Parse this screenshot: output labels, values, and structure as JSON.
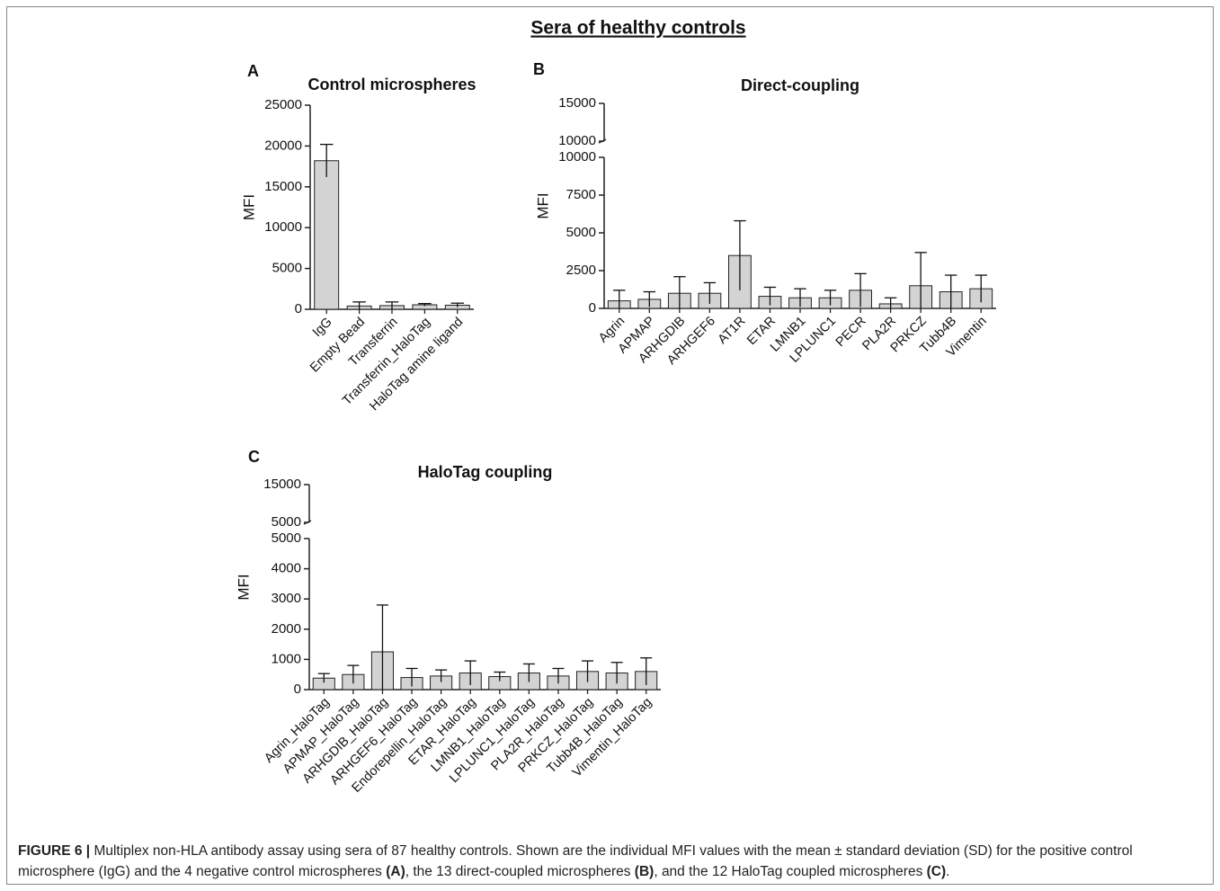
{
  "header": {
    "title": "Sera of healthy controls"
  },
  "chart_data": [
    {
      "type": "bar",
      "panel_label": "A",
      "title": "Control microspheres",
      "ylabel": "MFI",
      "color": "#d3d3d3",
      "categories": [
        "IgG",
        "Empty Bead",
        "Transferrin",
        "Transferrin_HaloTag",
        "HaloTag amine ligand"
      ],
      "values": [
        18200,
        400,
        450,
        550,
        500
      ],
      "errors": [
        2000,
        500,
        450,
        150,
        250
      ],
      "ylim": [
        0,
        25000
      ],
      "yticks": [
        0,
        5000,
        10000,
        15000,
        20000,
        25000
      ]
    },
    {
      "type": "bar",
      "panel_label": "B",
      "title": "Direct-coupling",
      "ylabel": "MFI",
      "color": "#d3d3d3",
      "categories": [
        "Agrin",
        "APMAP",
        "ARHGDIB",
        "ARHGEF6",
        "AT1R",
        "ETAR",
        "LMNB1",
        "LPLUNC1",
        "PECR",
        "PLA2R",
        "PRKCZ",
        "Tubb4B",
        "Vimentin"
      ],
      "values": [
        500,
        600,
        1000,
        1000,
        3500,
        800,
        700,
        700,
        1200,
        300,
        1500,
        1100,
        1300
      ],
      "errors": [
        700,
        500,
        1100,
        700,
        2300,
        600,
        600,
        500,
        1100,
        400,
        2200,
        1100,
        900
      ],
      "ylim": [
        0,
        10000
      ],
      "yticks": [
        0,
        2500,
        5000,
        7500,
        10000
      ],
      "ylim_upper": [
        10000,
        15000
      ],
      "yticks_upper": [
        10000,
        15000
      ]
    },
    {
      "type": "bar",
      "panel_label": "C",
      "title": "HaloTag coupling",
      "ylabel": "MFI",
      "color": "#d3d3d3",
      "categories": [
        "Agrin_HaloTag",
        "APMAP_HaloTag",
        "ARHGDIB_HaloTag",
        "ARHGEF6_HaloTag",
        "Endorepellin_HaloTag",
        "ETAR_HaloTag",
        "LMNB1_HaloTag",
        "LPLUNC1_HaloTag",
        "PLA2R_HaloTag",
        "PRKCZ_HaloTag",
        "Tubb4B_HaloTag",
        "Vimentin_HaloTag"
      ],
      "values": [
        380,
        500,
        1250,
        400,
        450,
        550,
        430,
        550,
        450,
        600,
        550,
        600
      ],
      "errors": [
        150,
        300,
        1550,
        300,
        200,
        400,
        150,
        300,
        250,
        350,
        350,
        450
      ],
      "ylim": [
        0,
        5000
      ],
      "yticks": [
        0,
        1000,
        2000,
        3000,
        4000,
        5000
      ],
      "ylim_upper": [
        5000,
        15000
      ],
      "yticks_upper": [
        5000,
        15000
      ]
    }
  ],
  "caption": [
    "FIGURE 6 |",
    " Multiplex non-HLA antibody assay using sera of 87 healthy controls. Shown are the individual MFI values with the mean ± standard deviation (SD) for the positive control microsphere (IgG) and the 4 negative control microspheres ",
    "(A)",
    ", the 13 direct-coupled microspheres ",
    "(B)",
    ", and the 12 HaloTag coupled microspheres ",
    "(C)",
    "."
  ]
}
